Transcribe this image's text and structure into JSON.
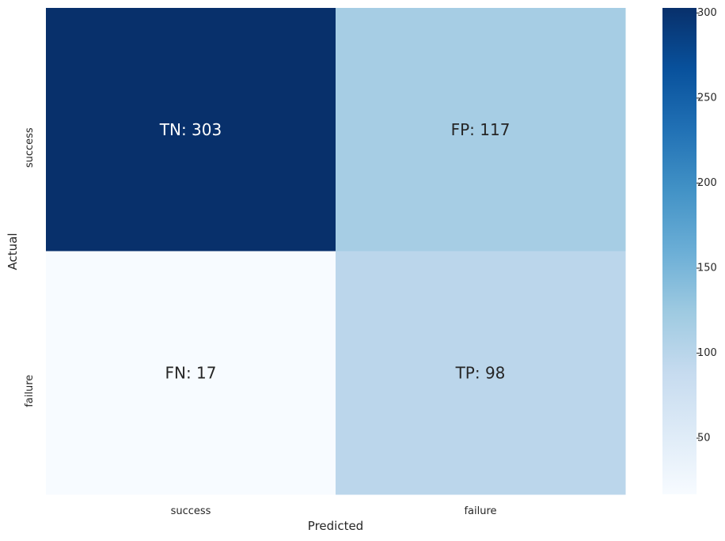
{
  "chart_data": {
    "type": "heatmap",
    "title": "",
    "xlabel": "Predicted",
    "ylabel": "Actual",
    "x_categories": [
      "success",
      "failure"
    ],
    "y_categories": [
      "success",
      "failure"
    ],
    "values": [
      [
        303,
        117
      ],
      [
        17,
        98
      ]
    ],
    "cell_labels": [
      [
        "TN: 303",
        "FP: 117"
      ],
      [
        "FN: 17",
        "TP: 98"
      ]
    ],
    "colormap": "Blues",
    "colorbar": {
      "min": 17,
      "max": 303,
      "ticks": [
        50,
        100,
        150,
        200,
        250,
        300
      ]
    },
    "colors": {
      "low": "#f7fbff",
      "high": "#08306b",
      "text_dark": "#262626",
      "text_light": "#ffffff"
    }
  }
}
